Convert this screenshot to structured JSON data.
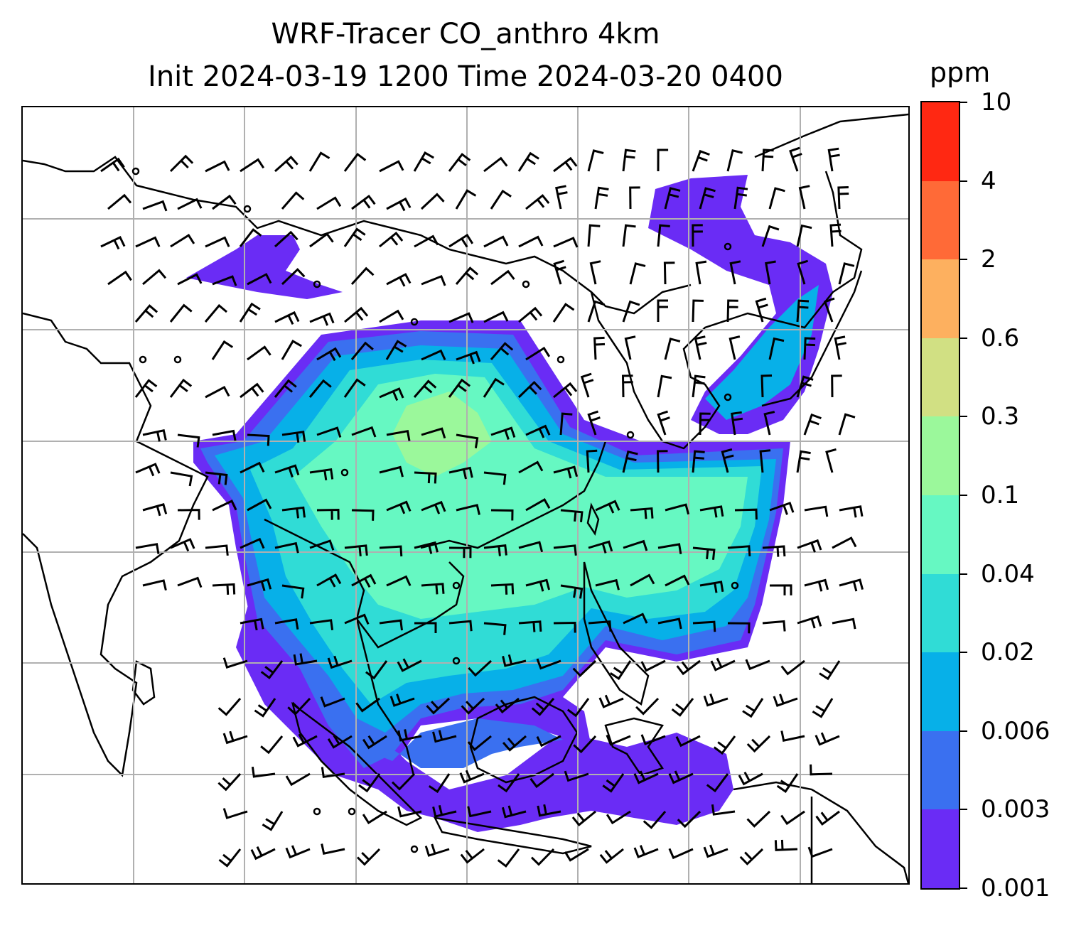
{
  "title": {
    "line1": "WRF-Tracer CO_anthro 4km",
    "line2": "Init 2024-03-19 1200 Time 2024-03-20 0400"
  },
  "colorbar": {
    "unit": "ppm",
    "levels": [
      "0.001",
      "0.003",
      "0.006",
      "0.02",
      "0.04",
      "0.1",
      "0.3",
      "0.6",
      "2",
      "4",
      "10"
    ],
    "colors": [
      "#6a2cf5",
      "#3a70f0",
      "#07b0e8",
      "#30dcd6",
      "#66f8c2",
      "#9bf89b",
      "#d1e083",
      "#fdb05f",
      "#ff6a37",
      "#ff2812"
    ]
  },
  "map": {
    "gridlines": true,
    "coastlines": true,
    "wind_barbs": true
  }
}
